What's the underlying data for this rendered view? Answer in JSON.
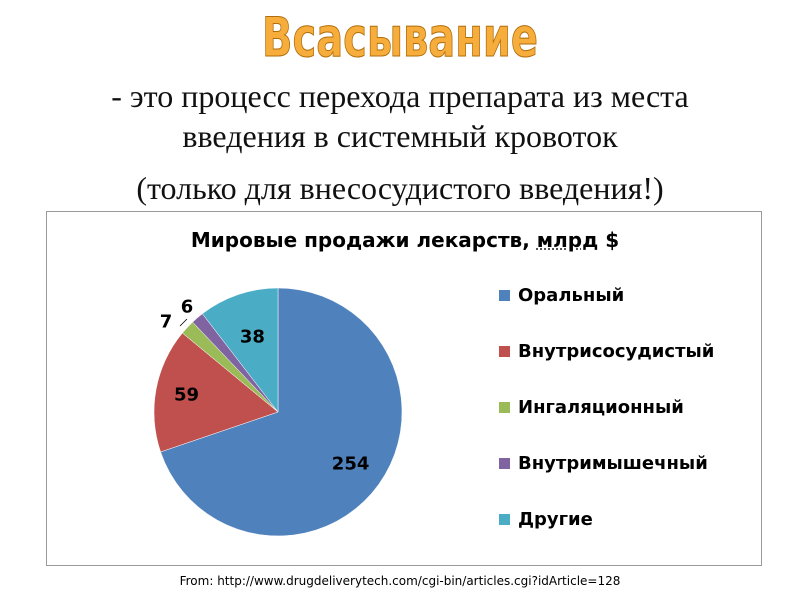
{
  "slide": {
    "title": "Всасывание",
    "subtitle_line1": "- это процесс перехода препарата из места",
    "subtitle_line2": "введения в системный кровоток",
    "subtitle_line3": "(только для внесосудистого введения!)"
  },
  "chart_data": {
    "type": "pie",
    "title": "Мировые продажи лекарств, ",
    "title_abbr": "млрд",
    "title_unit": " $",
    "slices": [
      {
        "label": "Оральный",
        "value": 254,
        "color": "#4f81bd"
      },
      {
        "label": "Внутрисосудистый",
        "value": 59,
        "color": "#c0504d"
      },
      {
        "label": "Ингаляционный",
        "value": 7,
        "color": "#9bbb59"
      },
      {
        "label": "Внутримышечный",
        "value": 6,
        "color": "#8064a2"
      },
      {
        "label": "Другие",
        "value": 38,
        "color": "#4bacc6"
      }
    ],
    "legend_position": "right",
    "data_labels": true
  },
  "footer": {
    "source": "From: http://www.drugdeliverytech.com/cgi-bin/articles.cgi?idArticle=128"
  }
}
